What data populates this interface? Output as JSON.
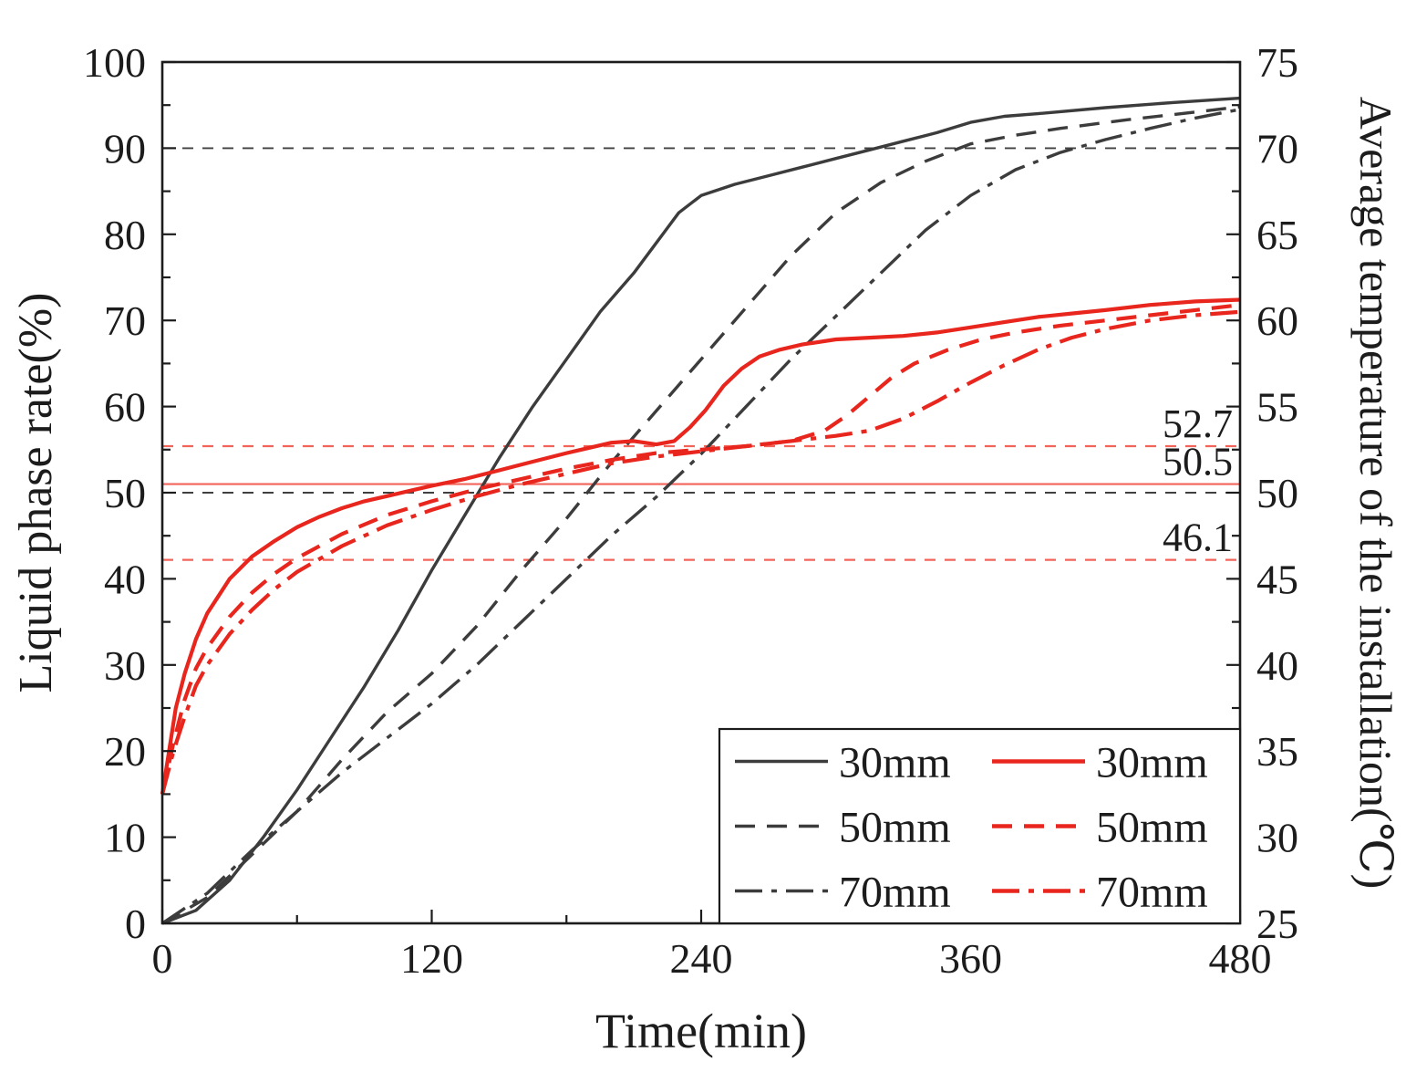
{
  "figure": {
    "title": "",
    "xlabel": "Time(min)",
    "ylabel_left": "Liquid phase rate(%)",
    "ylabel_right": "Average temperature of the installation(℃)"
  },
  "chart_data": {
    "type": "line",
    "title": "",
    "xlabel": "Time(min)",
    "ylabel_left": "Liquid phase rate(%)",
    "ylabel_right": "Average temperature of the installation(℃)",
    "xlim": [
      0,
      480
    ],
    "xticks": [
      0,
      120,
      240,
      360,
      480
    ],
    "xminor": [
      60,
      180,
      300,
      420
    ],
    "ylim_left": [
      0,
      100
    ],
    "yticks_left": [
      0,
      10,
      20,
      30,
      40,
      50,
      60,
      70,
      80,
      90,
      100
    ],
    "ylim_right": [
      25,
      75
    ],
    "yticks_right": [
      25,
      30,
      35,
      40,
      45,
      50,
      55,
      60,
      65,
      70,
      75
    ],
    "grid": false,
    "legend_position": "bottom-right",
    "colors": {
      "black_series": "#3c3c3c",
      "red_series": "#e8261d",
      "ref_black": "#404040",
      "ref_red": "#f2635a",
      "annotation_red": "#f0483e",
      "frame": "#1c1c1c"
    },
    "series": [
      {
        "label": "30mm",
        "group": "black",
        "axis": "left",
        "style": "solid",
        "x": [
          0,
          15,
          30,
          45,
          60,
          75,
          90,
          105,
          120,
          135,
          150,
          165,
          180,
          195,
          210,
          220,
          230,
          240,
          255,
          270,
          285,
          300,
          315,
          330,
          345,
          360,
          375,
          390,
          420,
          450,
          480
        ],
        "y": [
          0,
          1.5,
          5,
          10,
          15.5,
          21.5,
          27.5,
          34,
          41,
          47.5,
          54,
          60,
          65.5,
          71,
          75.5,
          79,
          82.5,
          84.5,
          85.8,
          86.8,
          87.8,
          88.8,
          89.8,
          90.8,
          91.8,
          93,
          93.7,
          94,
          94.7,
          95.3,
          95.8
        ]
      },
      {
        "label": "50mm",
        "group": "black",
        "axis": "left",
        "style": "dashed",
        "x": [
          0,
          20,
          40,
          60,
          80,
          100,
          120,
          140,
          160,
          180,
          200,
          220,
          240,
          260,
          280,
          300,
          320,
          340,
          360,
          380,
          400,
          430,
          460,
          480
        ],
        "y": [
          0,
          3,
          8,
          13,
          19,
          24.5,
          29,
          34.5,
          41,
          47,
          53.5,
          59.5,
          65.5,
          71.5,
          77.5,
          82.5,
          86,
          88.5,
          90.5,
          91.5,
          92.3,
          93.3,
          94.2,
          94.8
        ]
      },
      {
        "label": "70mm",
        "group": "black",
        "axis": "left",
        "style": "dashdot",
        "x": [
          0,
          20,
          40,
          60,
          80,
          100,
          120,
          140,
          160,
          180,
          200,
          220,
          240,
          260,
          280,
          300,
          320,
          340,
          360,
          380,
          400,
          420,
          440,
          460,
          480
        ],
        "y": [
          0,
          3.5,
          8.5,
          13,
          17.5,
          21.5,
          25.5,
          30,
          35,
          40,
          45,
          49.5,
          54.5,
          60,
          65.5,
          70.5,
          75.5,
          80.5,
          84.5,
          87.5,
          89.5,
          91,
          92.3,
          93.5,
          94.5
        ]
      },
      {
        "label": "30mm",
        "group": "red",
        "axis": "right",
        "style": "solid",
        "x": [
          0,
          3,
          6,
          10,
          15,
          20,
          25,
          30,
          40,
          50,
          60,
          70,
          80,
          90,
          100,
          110,
          120,
          135,
          150,
          165,
          180,
          190,
          200,
          210,
          220,
          228,
          235,
          242,
          250,
          258,
          266,
          275,
          285,
          300,
          315,
          330,
          345,
          360,
          375,
          390,
          405,
          420,
          440,
          460,
          480
        ],
        "y": [
          32.5,
          35,
          37.5,
          39.5,
          41.5,
          43,
          44,
          45,
          46.3,
          47.2,
          48,
          48.6,
          49.1,
          49.5,
          49.8,
          50.1,
          50.4,
          50.8,
          51.3,
          51.8,
          52.3,
          52.6,
          52.9,
          53.0,
          52.8,
          53.0,
          53.8,
          54.8,
          56.2,
          57.2,
          57.9,
          58.3,
          58.6,
          58.9,
          59.0,
          59.1,
          59.3,
          59.6,
          59.9,
          60.2,
          60.4,
          60.6,
          60.9,
          61.1,
          61.2
        ]
      },
      {
        "label": "50mm",
        "group": "red",
        "axis": "right",
        "style": "dashed",
        "x": [
          0,
          5,
          10,
          15,
          20,
          30,
          40,
          50,
          60,
          80,
          100,
          120,
          140,
          160,
          180,
          200,
          220,
          240,
          260,
          280,
          295,
          305,
          315,
          325,
          335,
          350,
          365,
          380,
          400,
          420,
          440,
          460,
          480
        ],
        "y": [
          32.5,
          35.5,
          38,
          39.8,
          41,
          42.8,
          44.2,
          45.3,
          46.2,
          47.6,
          48.7,
          49.5,
          50.2,
          50.8,
          51.4,
          51.9,
          52.3,
          52.5,
          52.7,
          53.0,
          53.6,
          54.5,
          55.6,
          56.7,
          57.5,
          58.3,
          58.9,
          59.3,
          59.7,
          60.0,
          60.3,
          60.6,
          60.9
        ]
      },
      {
        "label": "70mm",
        "group": "red",
        "axis": "right",
        "style": "dashdot",
        "x": [
          0,
          5,
          10,
          15,
          20,
          30,
          40,
          50,
          60,
          80,
          100,
          120,
          140,
          160,
          180,
          200,
          220,
          240,
          260,
          280,
          300,
          315,
          330,
          345,
          360,
          375,
          390,
          405,
          420,
          440,
          460,
          480
        ],
        "y": [
          32.5,
          35,
          37,
          38.8,
          40,
          41.8,
          43.2,
          44.4,
          45.4,
          46.9,
          48.1,
          49.0,
          49.8,
          50.5,
          51.1,
          51.7,
          52.1,
          52.4,
          52.7,
          53.0,
          53.3,
          53.6,
          54.3,
          55.3,
          56.4,
          57.4,
          58.3,
          59.0,
          59.5,
          60.0,
          60.3,
          60.5
        ]
      }
    ],
    "reference_lines": [
      {
        "axis": "left",
        "value": 90,
        "colorKey": "ref_black",
        "style": "refdash",
        "label": ""
      },
      {
        "axis": "left",
        "value": 50,
        "colorKey": "ref_black",
        "style": "refdash",
        "label": ""
      },
      {
        "axis": "right",
        "value": 52.7,
        "colorKey": "ref_red",
        "style": "refdash",
        "label": "52.7"
      },
      {
        "axis": "right",
        "value": 50.5,
        "colorKey": "ref_red",
        "style": "solid",
        "label": "50.5"
      },
      {
        "axis": "right",
        "value": 46.1,
        "colorKey": "ref_red",
        "style": "refdash",
        "label": "46.1"
      }
    ],
    "legend": {
      "black_items": [
        {
          "label": "30mm",
          "style": "solid"
        },
        {
          "label": "50mm",
          "style": "dashed"
        },
        {
          "label": "70mm",
          "style": "dashdot"
        }
      ],
      "red_items": [
        {
          "label": "30mm",
          "style": "solid"
        },
        {
          "label": "50mm",
          "style": "dashed"
        },
        {
          "label": "70mm",
          "style": "dashdot"
        }
      ]
    }
  }
}
